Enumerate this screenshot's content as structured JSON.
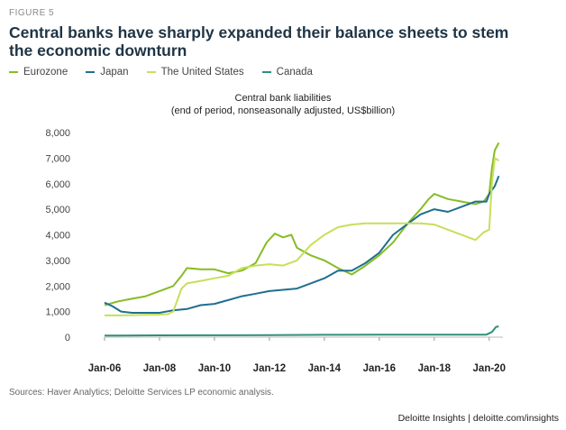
{
  "figure_label": "FIGURE 5",
  "title_line1": "Central banks have sharply expanded their balance sheets to stem",
  "title_line2": "the economic  downturn",
  "legend": [
    {
      "name": "Eurozone",
      "color": "#86bc25"
    },
    {
      "name": "Japan",
      "color": "#1f6f8f"
    },
    {
      "name": "The United States",
      "color": "#c5e05a"
    },
    {
      "name": "Canada",
      "color": "#2f8f7a"
    }
  ],
  "chart_title": "Central bank liabilities",
  "chart_subtitle": "(end of period, nonseasonally adjusted, US$billion)",
  "sources": "Sources: Haver Analytics; Deloitte Services LP economic analysis.",
  "footer": "Deloitte Insights | deloitte.com/insights",
  "chart_data": {
    "type": "line",
    "title": "Central bank liabilities",
    "subtitle": "(end of period, nonseasonally adjusted, US$billion)",
    "xlabel": "",
    "ylabel": "",
    "xlim": [
      2006.0,
      2020.5
    ],
    "ylim": [
      0,
      8000
    ],
    "y_ticks": [
      0,
      1000,
      2000,
      3000,
      4000,
      5000,
      6000,
      7000,
      8000
    ],
    "y_tick_labels": [
      "0",
      "1,000",
      "2,000",
      "3,000",
      "4,000",
      "5,000",
      "6,000",
      "7,000",
      "8,000"
    ],
    "x_ticks": [
      2006,
      2008,
      2010,
      2012,
      2014,
      2016,
      2018,
      2020
    ],
    "x_tick_labels": [
      "Jan-06",
      "Jan-08",
      "Jan-10",
      "Jan-12",
      "Jan-14",
      "Jan-16",
      "Jan-18",
      "Jan-20"
    ],
    "grid": false,
    "series": [
      {
        "name": "Eurozone",
        "color": "#86bc25",
        "x": [
          2006.0,
          2006.5,
          2007.0,
          2007.5,
          2008.0,
          2008.5,
          2008.8,
          2009.0,
          2009.5,
          2010.0,
          2010.5,
          2011.0,
          2011.5,
          2011.9,
          2012.2,
          2012.5,
          2012.8,
          2013.0,
          2013.5,
          2014.0,
          2014.5,
          2015.0,
          2015.5,
          2016.0,
          2016.5,
          2017.0,
          2017.5,
          2017.8,
          2018.0,
          2018.5,
          2019.0,
          2019.5,
          2019.8,
          2020.0,
          2020.1,
          2020.2,
          2020.35
        ],
        "values": [
          1250,
          1400,
          1500,
          1600,
          1800,
          2000,
          2400,
          2700,
          2650,
          2650,
          2500,
          2600,
          2900,
          3700,
          4050,
          3900,
          4000,
          3500,
          3200,
          3000,
          2700,
          2450,
          2800,
          3200,
          3700,
          4400,
          5000,
          5400,
          5600,
          5400,
          5300,
          5200,
          5300,
          5600,
          6600,
          7300,
          7600
        ]
      },
      {
        "name": "Japan",
        "color": "#1f6f8f",
        "x": [
          2006.0,
          2006.3,
          2006.6,
          2007.0,
          2007.5,
          2008.0,
          2008.5,
          2009.0,
          2009.5,
          2010.0,
          2010.5,
          2011.0,
          2011.5,
          2012.0,
          2012.5,
          2013.0,
          2013.5,
          2014.0,
          2014.5,
          2015.0,
          2015.5,
          2016.0,
          2016.5,
          2017.0,
          2017.5,
          2018.0,
          2018.5,
          2019.0,
          2019.5,
          2019.9,
          2020.0,
          2020.2,
          2020.35
        ],
        "values": [
          1350,
          1200,
          1000,
          950,
          950,
          950,
          1050,
          1100,
          1250,
          1300,
          1450,
          1600,
          1700,
          1800,
          1850,
          1900,
          2100,
          2300,
          2600,
          2600,
          2900,
          3300,
          4000,
          4400,
          4800,
          5000,
          4900,
          5100,
          5300,
          5300,
          5600,
          5900,
          6300
        ]
      },
      {
        "name": "The United States",
        "color": "#c5e05a",
        "x": [
          2006.0,
          2006.5,
          2007.0,
          2007.5,
          2008.0,
          2008.3,
          2008.5,
          2008.8,
          2009.0,
          2009.5,
          2010.0,
          2010.5,
          2011.0,
          2011.5,
          2012.0,
          2012.5,
          2013.0,
          2013.5,
          2014.0,
          2014.5,
          2015.0,
          2015.5,
          2016.0,
          2016.5,
          2017.0,
          2017.5,
          2018.0,
          2018.5,
          2019.0,
          2019.5,
          2019.8,
          2020.0,
          2020.1,
          2020.2,
          2020.35
        ],
        "values": [
          850,
          850,
          860,
          870,
          880,
          900,
          1000,
          1900,
          2100,
          2200,
          2300,
          2400,
          2700,
          2800,
          2850,
          2800,
          3000,
          3600,
          4000,
          4300,
          4400,
          4450,
          4450,
          4450,
          4450,
          4450,
          4400,
          4200,
          4000,
          3800,
          4100,
          4200,
          6000,
          7000,
          6900
        ]
      },
      {
        "name": "Canada",
        "color": "#2f8f7a",
        "x": [
          2006.0,
          2008.0,
          2010.0,
          2012.0,
          2014.0,
          2016.0,
          2018.0,
          2019.9,
          2020.1,
          2020.25,
          2020.35
        ],
        "values": [
          60,
          70,
          75,
          80,
          90,
          95,
          100,
          100,
          200,
          400,
          420
        ]
      }
    ]
  }
}
